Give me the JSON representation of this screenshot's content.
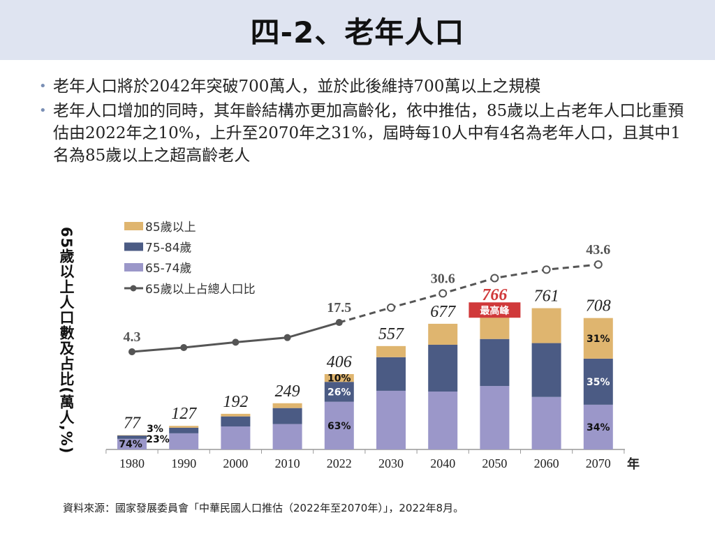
{
  "title": "四-2、老年人口",
  "bullets": [
    "老年人口將於2042年突破700萬人，並於此後維持700萬以上之規模",
    "老年人口增加的同時，其年齡結構亦更加高齡化，依中推估，85歲以上占老年人口比重預估由2022年之10%，上升至2070年之31%，屆時每10人中有4名為老年人口，且其中1名為85歲以上之超高齡老人"
  ],
  "source": "資料來源：國家發展委員會「中華民國人口推估（2022年至2070年）」，2022年8月。",
  "chart_data": {
    "type": "bar",
    "stacked": true,
    "ylabel": "65歲以上人口數及占比(萬人,%)",
    "xlabel": "年",
    "categories": [
      "1980",
      "1990",
      "2000",
      "2010",
      "2022",
      "2030",
      "2040",
      "2050",
      "2060",
      "2070"
    ],
    "totals": [
      77,
      127,
      192,
      249,
      406,
      557,
      677,
      766,
      761,
      708
    ],
    "series": [
      {
        "name": "65-74歲",
        "color": "#9b97c9",
        "values": [
          57,
          87,
          124,
          137,
          257,
          316,
          312,
          342,
          283,
          241
        ]
      },
      {
        "name": "75-84歲",
        "color": "#4b5b84",
        "values": [
          18,
          30,
          54,
          86,
          107,
          181,
          252,
          253,
          290,
          248
        ]
      },
      {
        "name": "85歲以上",
        "color": "#dfb56f",
        "values": [
          2,
          10,
          14,
          26,
          42,
          60,
          113,
          171,
          188,
          219
        ]
      }
    ],
    "line": {
      "name": "65歲以上占總人口比",
      "color": "#555555",
      "values": [
        4.3,
        6.2,
        8.6,
        10.7,
        17.5,
        24.2,
        30.6,
        37.5,
        41.3,
        43.6
      ],
      "labels": [
        "4.3",
        "",
        "",
        "",
        "17.5",
        "",
        "30.6",
        "",
        "",
        "43.6"
      ],
      "dashed_from": "2022"
    },
    "segment_labels": [
      {
        "category": "1980",
        "series": "65-74歲",
        "text": "74%"
      },
      {
        "category": "1980",
        "series": "75-84歲",
        "text": "23%"
      },
      {
        "category": "1980",
        "series": "85歲以上",
        "text": "3%"
      },
      {
        "category": "2022",
        "series": "65-74歲",
        "text": "63%"
      },
      {
        "category": "2022",
        "series": "75-84歲",
        "text": "26%"
      },
      {
        "category": "2022",
        "series": "85歲以上",
        "text": "10%"
      },
      {
        "category": "2070",
        "series": "65-74歲",
        "text": "34%"
      },
      {
        "category": "2070",
        "series": "75-84歲",
        "text": "35%"
      },
      {
        "category": "2070",
        "series": "85歲以上",
        "text": "31%"
      }
    ],
    "peak": {
      "category": "2050",
      "label": "最高峰",
      "color": "#d0393a"
    },
    "legend": [
      "85歲以上",
      "75-84歲",
      "65-74歲",
      "65歲以上占總人口比"
    ],
    "legend_position": "top-left"
  }
}
